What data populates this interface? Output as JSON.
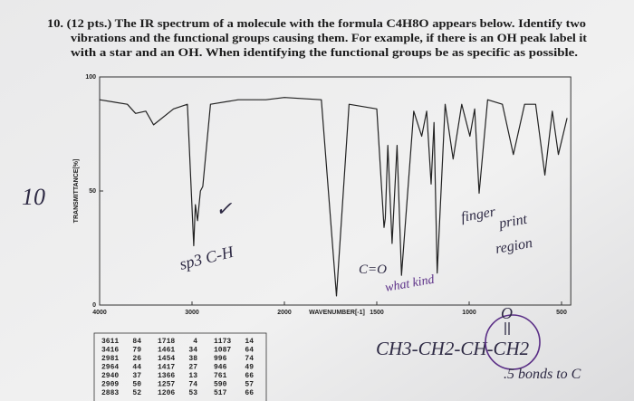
{
  "question": {
    "lines": [
      "10. (12 pts.) The IR spectrum of a molecule with the formula C4H8O appears below. Identify two",
      "vibrations and the functional groups causing them. For example, if there is an OH peak label it",
      "with a star and an OH. When identifying the functional groups be as specific as possible."
    ]
  },
  "chart_data": {
    "type": "line",
    "y_label": "TRANSMITTANCE[%]",
    "x_label": "WAVENUMBER[-1]",
    "x": [
      4000,
      3700,
      3611,
      3500,
      3416,
      3200,
      3050,
      2981,
      2964,
      2940,
      2909,
      2883,
      2800,
      2500,
      2200,
      2000,
      1800,
      1718,
      1650,
      1500,
      1461,
      1454,
      1440,
      1417,
      1390,
      1366,
      1300,
      1257,
      1230,
      1206,
      1190,
      1173,
      1130,
      1087,
      1040,
      996,
      970,
      946,
      900,
      820,
      761,
      700,
      640,
      590,
      550,
      517,
      470
    ],
    "values": [
      90,
      88,
      84,
      85,
      79,
      86,
      88,
      26,
      44,
      37,
      50,
      52,
      88,
      90,
      90,
      91,
      90,
      4,
      88,
      86,
      34,
      38,
      70,
      27,
      70,
      13,
      85,
      74,
      85,
      53,
      80,
      14,
      88,
      64,
      88,
      74,
      86,
      49,
      90,
      88,
      66,
      88,
      88,
      57,
      85,
      66,
      82
    ],
    "color": "#222222",
    "xlim": [
      4000,
      450
    ],
    "xticks": [
      4000,
      3000,
      2000,
      1500,
      1000,
      500
    ],
    "ylim": [
      0,
      100
    ],
    "yticks": [
      0,
      50,
      100
    ]
  },
  "peak_table": [
    [
      [
        3611,
        84
      ],
      [
        3416,
        79
      ],
      [
        2981,
        26
      ],
      [
        2964,
        44
      ],
      [
        2940,
        37
      ],
      [
        2909,
        50
      ],
      [
        2883,
        52
      ]
    ],
    [
      [
        1718,
        4
      ],
      [
        1461,
        34
      ],
      [
        1454,
        38
      ],
      [
        1417,
        27
      ],
      [
        1366,
        13
      ],
      [
        1257,
        74
      ],
      [
        1206,
        53
      ]
    ],
    [
      [
        1173,
        14
      ],
      [
        1087,
        64
      ],
      [
        996,
        74
      ],
      [
        946,
        49
      ],
      [
        761,
        66
      ],
      [
        590,
        57
      ],
      [
        517,
        66
      ]
    ]
  ],
  "annotations": {
    "score": "10",
    "check": "✓",
    "sp3": "sp3 C-H",
    "carbonyl": "C=O",
    "what_kind": "what kind",
    "fingerprint": [
      "finger",
      "print",
      "region"
    ],
    "structure": "CH3-CH2-CH-CH2",
    "oxygen": "O",
    "bonds": ".5 bonds to C"
  }
}
